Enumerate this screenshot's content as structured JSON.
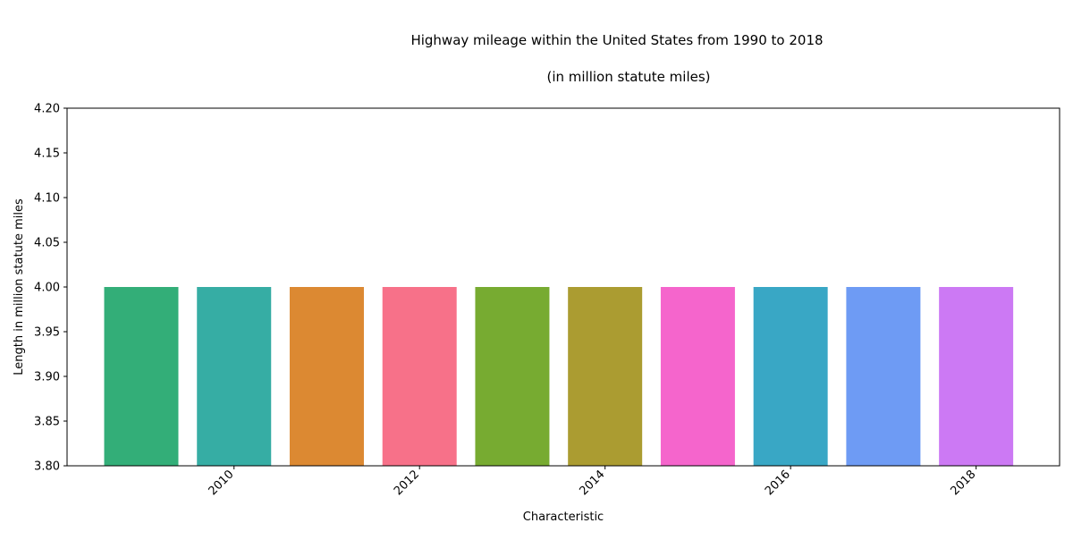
{
  "chart_data": {
    "type": "bar",
    "title": "Highway mileage within the United States from 1990 to 2018",
    "subtitle": "(in million statute miles)",
    "xlabel": "Characteristic",
    "ylabel": "Length in million statute miles",
    "ylim": [
      3.8,
      4.2
    ],
    "xlim": [
      2008.2,
      2018.9
    ],
    "y_ticks": [
      "3.80",
      "3.85",
      "3.90",
      "3.95",
      "4.00",
      "4.05",
      "4.10",
      "4.15",
      "4.20"
    ],
    "x_ticks": [
      "2010",
      "2012",
      "2014",
      "2016",
      "2018"
    ],
    "categories": [
      2009,
      2010,
      2011,
      2012,
      2013,
      2014,
      2015,
      2016,
      2017,
      2018
    ],
    "values": [
      4.0,
      4.0,
      4.0,
      4.0,
      4.0,
      4.0,
      4.0,
      4.0,
      4.0,
      4.0
    ],
    "colors": [
      "#33ae78",
      "#36ada4",
      "#dc8932",
      "#f77189",
      "#77ab31",
      "#ab9c31",
      "#f565cc",
      "#39a7c5",
      "#6e9bf4",
      "#cc79f4"
    ],
    "grid": false,
    "legend": false
  }
}
